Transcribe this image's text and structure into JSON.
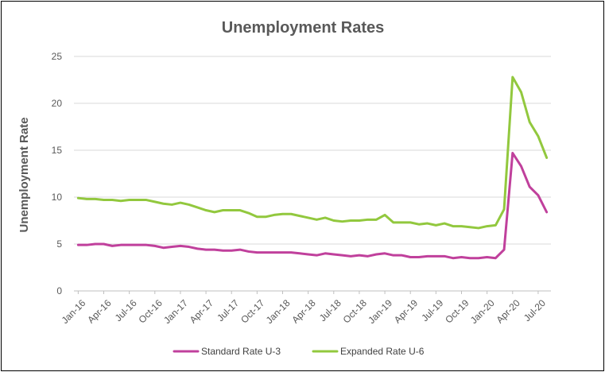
{
  "chart_data": {
    "type": "line",
    "title": "Unemployment Rates",
    "ylabel": "Unemployment Rate",
    "xlabel": "",
    "ylim": [
      0,
      25
    ],
    "yticks": [
      "0",
      "5",
      "10",
      "15",
      "20",
      "25"
    ],
    "grid": "horizontal",
    "legend_position": "bottom",
    "x": [
      "Jan-16",
      "Feb-16",
      "Mar-16",
      "Apr-16",
      "May-16",
      "Jun-16",
      "Jul-16",
      "Aug-16",
      "Sep-16",
      "Oct-16",
      "Nov-16",
      "Dec-16",
      "Jan-17",
      "Feb-17",
      "Mar-17",
      "Apr-17",
      "May-17",
      "Jun-17",
      "Jul-17",
      "Aug-17",
      "Sep-17",
      "Oct-17",
      "Nov-17",
      "Dec-17",
      "Jan-18",
      "Feb-18",
      "Mar-18",
      "Apr-18",
      "May-18",
      "Jun-18",
      "Jul-18",
      "Aug-18",
      "Sep-18",
      "Oct-18",
      "Nov-18",
      "Dec-18",
      "Jan-19",
      "Feb-19",
      "Mar-19",
      "Apr-19",
      "May-19",
      "Jun-19",
      "Jul-19",
      "Aug-19",
      "Sep-19",
      "Oct-19",
      "Nov-19",
      "Dec-19",
      "Jan-20",
      "Feb-20",
      "Mar-20",
      "Apr-20",
      "May-20",
      "Jun-20",
      "Jul-20",
      "Aug-20"
    ],
    "xtick_labels": [
      "Jan-16",
      "Apr-16",
      "Jul-16",
      "Oct-16",
      "Jan-17",
      "Apr-17",
      "Jul-17",
      "Oct-17",
      "Jan-18",
      "Apr-18",
      "Jul-18",
      "Oct-18",
      "Jan-19",
      "Apr-19",
      "Jul-19",
      "Oct-19",
      "Jan-20",
      "Apr-20",
      "Jul-20"
    ],
    "series": [
      {
        "name": "Standard Rate U-3",
        "color": "#c0409c",
        "values": [
          4.9,
          4.9,
          5.0,
          5.0,
          4.8,
          4.9,
          4.9,
          4.9,
          4.9,
          4.8,
          4.6,
          4.7,
          4.8,
          4.7,
          4.5,
          4.4,
          4.4,
          4.3,
          4.3,
          4.4,
          4.2,
          4.1,
          4.1,
          4.1,
          4.1,
          4.1,
          4.0,
          3.9,
          3.8,
          4.0,
          3.9,
          3.8,
          3.7,
          3.8,
          3.7,
          3.9,
          4.0,
          3.8,
          3.8,
          3.6,
          3.6,
          3.7,
          3.7,
          3.7,
          3.5,
          3.6,
          3.5,
          3.5,
          3.6,
          3.5,
          4.4,
          14.7,
          13.3,
          11.1,
          10.2,
          8.4
        ]
      },
      {
        "name": "Expanded Rate U-6",
        "color": "#92c83e",
        "values": [
          9.9,
          9.8,
          9.8,
          9.7,
          9.7,
          9.6,
          9.7,
          9.7,
          9.7,
          9.5,
          9.3,
          9.2,
          9.4,
          9.2,
          8.9,
          8.6,
          8.4,
          8.6,
          8.6,
          8.6,
          8.3,
          7.9,
          7.9,
          8.1,
          8.2,
          8.2,
          8.0,
          7.8,
          7.6,
          7.8,
          7.5,
          7.4,
          7.5,
          7.5,
          7.6,
          7.6,
          8.1,
          7.3,
          7.3,
          7.3,
          7.1,
          7.2,
          7.0,
          7.2,
          6.9,
          6.9,
          6.8,
          6.7,
          6.9,
          7.0,
          8.7,
          22.8,
          21.2,
          18.0,
          16.5,
          14.2
        ]
      }
    ]
  }
}
